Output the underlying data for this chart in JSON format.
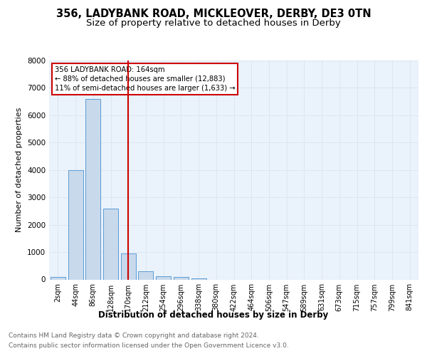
{
  "title1": "356, LADYBANK ROAD, MICKLEOVER, DERBY, DE3 0TN",
  "title2": "Size of property relative to detached houses in Derby",
  "xlabel": "Distribution of detached houses by size in Derby",
  "ylabel": "Number of detached properties",
  "bin_labels": [
    "2sqm",
    "44sqm",
    "86sqm",
    "128sqm",
    "170sqm",
    "212sqm",
    "254sqm",
    "296sqm",
    "338sqm",
    "380sqm",
    "422sqm",
    "464sqm",
    "506sqm",
    "547sqm",
    "589sqm",
    "631sqm",
    "673sqm",
    "715sqm",
    "757sqm",
    "799sqm",
    "841sqm"
  ],
  "bar_values": [
    100,
    4000,
    6600,
    2600,
    950,
    300,
    110,
    100,
    50,
    0,
    0,
    0,
    0,
    0,
    0,
    0,
    0,
    0,
    0,
    0,
    0
  ],
  "bar_color": "#c8d9eb",
  "bar_edge_color": "#5b9bd5",
  "vline_x": 4,
  "vline_color": "#cc0000",
  "ylim": [
    0,
    8000
  ],
  "yticks": [
    0,
    1000,
    2000,
    3000,
    4000,
    5000,
    6000,
    7000,
    8000
  ],
  "annotation_line1": "356 LADYBANK ROAD: 164sqm",
  "annotation_line2": "← 88% of detached houses are smaller (12,883)",
  "annotation_line3": "11% of semi-detached houses are larger (1,633) →",
  "annotation_box_color": "#cc0000",
  "grid_color": "#dce6f1",
  "background_color": "#eaf2fb",
  "footer_line1": "Contains HM Land Registry data © Crown copyright and database right 2024.",
  "footer_line2": "Contains public sector information licensed under the Open Government Licence v3.0.",
  "title_fontsize": 10.5,
  "subtitle_fontsize": 9.5,
  "axis_label_fontsize": 8.5,
  "tick_fontsize": 7.5,
  "ylabel_fontsize": 8,
  "footer_fontsize": 6.5
}
